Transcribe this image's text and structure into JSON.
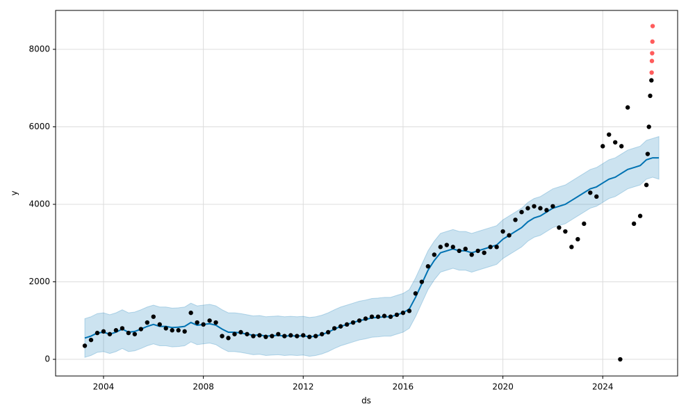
{
  "chart_data": {
    "type": "forecast",
    "xlabel": "ds",
    "ylabel": "y",
    "xlim": [
      2002.08,
      2027.0
    ],
    "ylim": [
      -430,
      9004
    ],
    "xticks": [
      2004,
      2008,
      2012,
      2016,
      2020,
      2024
    ],
    "yticks": [
      0,
      2000,
      4000,
      6000,
      8000
    ],
    "grid": true,
    "band": {
      "color": "#0072B2",
      "x": [
        2003.25,
        2003.5,
        2003.75,
        2004,
        2004.25,
        2004.5,
        2004.75,
        2005,
        2005.25,
        2005.5,
        2005.75,
        2006,
        2006.25,
        2006.5,
        2006.75,
        2007,
        2007.25,
        2007.5,
        2007.75,
        2008,
        2008.25,
        2008.5,
        2008.75,
        2009,
        2009.25,
        2009.5,
        2009.75,
        2010,
        2010.25,
        2010.5,
        2010.75,
        2011,
        2011.25,
        2011.5,
        2011.75,
        2012,
        2012.25,
        2012.5,
        2012.75,
        2013,
        2013.25,
        2013.5,
        2013.75,
        2014,
        2014.25,
        2014.5,
        2014.75,
        2015,
        2015.25,
        2015.5,
        2015.75,
        2016,
        2016.25,
        2016.5,
        2016.75,
        2017,
        2017.25,
        2017.5,
        2017.75,
        2018,
        2018.25,
        2018.5,
        2018.75,
        2019,
        2019.25,
        2019.5,
        2019.75,
        2020,
        2020.25,
        2020.5,
        2020.75,
        2021,
        2021.25,
        2021.5,
        2021.75,
        2022,
        2022.25,
        2022.5,
        2022.75,
        2023,
        2023.25,
        2023.5,
        2023.75,
        2024,
        2024.25,
        2024.5,
        2024.75,
        2025,
        2025.25,
        2025.5,
        2025.75,
        2026,
        2026.25
      ],
      "lower": [
        50,
        100,
        180,
        200,
        150,
        200,
        280,
        200,
        220,
        280,
        350,
        400,
        350,
        350,
        320,
        330,
        350,
        450,
        380,
        400,
        420,
        380,
        280,
        200,
        200,
        180,
        150,
        120,
        130,
        100,
        110,
        120,
        100,
        110,
        100,
        110,
        80,
        100,
        140,
        200,
        280,
        350,
        400,
        450,
        500,
        530,
        570,
        580,
        600,
        600,
        650,
        700,
        800,
        1100,
        1450,
        1800,
        2050,
        2250,
        2300,
        2350,
        2300,
        2300,
        2250,
        2300,
        2350,
        2400,
        2450,
        2600,
        2700,
        2800,
        2900,
        3050,
        3150,
        3200,
        3300,
        3400,
        3450,
        3500,
        3600,
        3700,
        3800,
        3900,
        3950,
        4050,
        4150,
        4200,
        4300,
        4400,
        4450,
        4500,
        4650,
        4700,
        4650
      ],
      "upper": [
        1050,
        1100,
        1180,
        1200,
        1150,
        1200,
        1280,
        1200,
        1220,
        1280,
        1350,
        1400,
        1350,
        1350,
        1320,
        1330,
        1350,
        1450,
        1380,
        1400,
        1420,
        1380,
        1280,
        1200,
        1200,
        1180,
        1150,
        1120,
        1130,
        1100,
        1110,
        1120,
        1100,
        1110,
        1100,
        1110,
        1080,
        1100,
        1140,
        1200,
        1280,
        1350,
        1400,
        1450,
        1500,
        1530,
        1570,
        1580,
        1600,
        1600,
        1650,
        1700,
        1800,
        2100,
        2450,
        2800,
        3050,
        3250,
        3300,
        3350,
        3300,
        3300,
        3250,
        3300,
        3350,
        3400,
        3450,
        3600,
        3700,
        3800,
        3900,
        4050,
        4150,
        4200,
        4300,
        4400,
        4450,
        4500,
        4600,
        4700,
        4800,
        4900,
        4950,
        5050,
        5150,
        5200,
        5300,
        5400,
        5450,
        5500,
        5650,
        5700,
        5750
      ]
    },
    "series": [
      {
        "marker": "line",
        "color": "#0072B2",
        "x": [
          2003.25,
          2003.5,
          2003.75,
          2004,
          2004.25,
          2004.5,
          2004.75,
          2005,
          2005.25,
          2005.5,
          2005.75,
          2006,
          2006.25,
          2006.5,
          2006.75,
          2007,
          2007.25,
          2007.5,
          2007.75,
          2008,
          2008.25,
          2008.5,
          2008.75,
          2009,
          2009.25,
          2009.5,
          2009.75,
          2010,
          2010.25,
          2010.5,
          2010.75,
          2011,
          2011.25,
          2011.5,
          2011.75,
          2012,
          2012.25,
          2012.5,
          2012.75,
          2013,
          2013.25,
          2013.5,
          2013.75,
          2014,
          2014.25,
          2014.5,
          2014.75,
          2015,
          2015.25,
          2015.5,
          2015.75,
          2016,
          2016.25,
          2016.5,
          2016.75,
          2017,
          2017.25,
          2017.5,
          2017.75,
          2018,
          2018.25,
          2018.5,
          2018.75,
          2019,
          2019.25,
          2019.5,
          2019.75,
          2020,
          2020.25,
          2020.5,
          2020.75,
          2021,
          2021.25,
          2021.5,
          2021.75,
          2022,
          2022.25,
          2022.5,
          2022.75,
          2023,
          2023.25,
          2023.5,
          2023.75,
          2024,
          2024.25,
          2024.5,
          2024.75,
          2025,
          2025.25,
          2025.5,
          2025.75,
          2026,
          2026.25
        ],
        "values": [
          550,
          600,
          680,
          700,
          650,
          700,
          780,
          700,
          720,
          780,
          850,
          900,
          850,
          850,
          820,
          830,
          850,
          950,
          880,
          900,
          920,
          880,
          780,
          700,
          700,
          680,
          650,
          620,
          630,
          600,
          610,
          620,
          600,
          610,
          600,
          610,
          580,
          600,
          640,
          700,
          780,
          850,
          900,
          950,
          1000,
          1030,
          1070,
          1080,
          1100,
          1100,
          1150,
          1200,
          1300,
          1600,
          1950,
          2300,
          2550,
          2750,
          2800,
          2850,
          2800,
          2800,
          2750,
          2800,
          2850,
          2900,
          2950,
          3100,
          3200,
          3300,
          3400,
          3550,
          3650,
          3700,
          3800,
          3900,
          3950,
          4000,
          4100,
          4200,
          4300,
          4400,
          4450,
          4550,
          4650,
          4700,
          4800,
          4900,
          4950,
          5000,
          5150,
          5200,
          5200
        ]
      },
      {
        "marker": "points",
        "color": "#000000",
        "x": [
          2003.25,
          2003.5,
          2003.75,
          2004,
          2004.25,
          2004.5,
          2004.75,
          2005,
          2005.25,
          2005.5,
          2005.75,
          2006,
          2006.25,
          2006.5,
          2006.75,
          2007,
          2007.25,
          2007.5,
          2007.75,
          2008,
          2008.25,
          2008.5,
          2008.75,
          2009,
          2009.25,
          2009.5,
          2009.75,
          2010,
          2010.25,
          2010.5,
          2010.75,
          2011,
          2011.25,
          2011.5,
          2011.75,
          2012,
          2012.25,
          2012.5,
          2012.75,
          2013,
          2013.25,
          2013.5,
          2013.75,
          2014,
          2014.25,
          2014.5,
          2014.75,
          2015,
          2015.25,
          2015.5,
          2015.75,
          2016,
          2016.25,
          2016.5,
          2016.75,
          2017,
          2017.25,
          2017.5,
          2017.75,
          2018,
          2018.25,
          2018.5,
          2018.75,
          2019,
          2019.25,
          2019.5,
          2019.75,
          2020,
          2020.25,
          2020.5,
          2020.75,
          2021,
          2021.25,
          2021.5,
          2021.75,
          2022,
          2022.25,
          2022.5,
          2022.75,
          2023,
          2023.25,
          2023.5,
          2023.75,
          2024,
          2024.25,
          2024.5,
          2024.7,
          2024.75,
          2025,
          2025.25,
          2025.5,
          2025.75,
          2025.8,
          2025.85,
          2025.9,
          2025.95
        ],
        "values": [
          350,
          500,
          680,
          720,
          650,
          750,
          800,
          680,
          650,
          780,
          950,
          1100,
          900,
          800,
          750,
          750,
          720,
          1200,
          950,
          900,
          1000,
          950,
          600,
          550,
          650,
          700,
          650,
          600,
          620,
          580,
          600,
          650,
          600,
          620,
          600,
          620,
          580,
          600,
          650,
          700,
          800,
          850,
          900,
          950,
          1000,
          1050,
          1100,
          1100,
          1120,
          1100,
          1150,
          1200,
          1250,
          1700,
          2000,
          2400,
          2700,
          2900,
          2950,
          2900,
          2800,
          2850,
          2700,
          2800,
          2750,
          2900,
          2900,
          3300,
          3200,
          3600,
          3800,
          3900,
          3950,
          3900,
          3850,
          3950,
          3400,
          3300,
          2900,
          3100,
          3500,
          4300,
          4200,
          5500,
          5800,
          5600,
          0,
          5500,
          6500,
          3500,
          3700,
          4500,
          5300,
          6000,
          6800,
          7200
        ]
      },
      {
        "marker": "points",
        "color": "#ff3333",
        "x": [
          2025.96,
          2025.97,
          2025.98,
          2025.99,
          2026.0
        ],
        "values": [
          7400,
          7700,
          7900,
          8200,
          8600
        ]
      }
    ]
  }
}
